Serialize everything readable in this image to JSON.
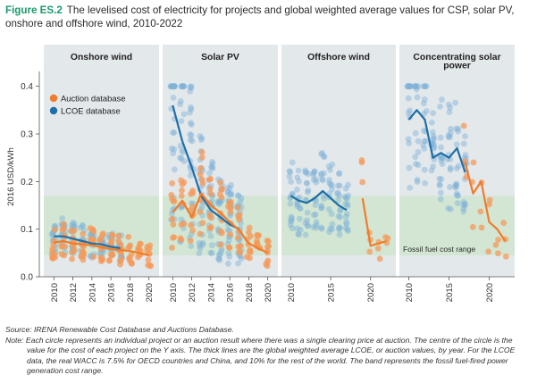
{
  "caption": {
    "figure_label": "Figure ES.2",
    "title": "The levelised cost of electricity for projects and global weighted average values for CSP, solar PV, onshore and offshore wind, 2010-2022"
  },
  "notes": {
    "source": "Source: IRENA Renewable Cost Database and Auctions Database.",
    "note": "Note: Each circle represents an individual project or an auction result where there was a single clearing price at auction. The centre of the circle is the value for the cost of each project on the Y axis. The thick lines are the global weighted average LCOE, or auction values, by year. For the LCOE data, the real WACC is 7.5% for OECD countries and China, and 10% for the rest of the world. The band represents the fossil fuel-fired power generation cost range."
  },
  "colors": {
    "panel_bg": "#e3e8eb",
    "band": "#cfe5cf",
    "lcoe_line": "#1f6fa8",
    "lcoe_dot": "#7fb2d6",
    "auction_line": "#f07c2a",
    "auction_dot": "#f59a5a",
    "fossil_label": "#2b2b2b"
  },
  "chart_data": {
    "type": "scatter",
    "ylabel": "2016 USD/kWh",
    "ylim": [
      0,
      0.42
    ],
    "y_ticks": [
      0.0,
      0.1,
      0.2,
      0.3,
      0.4
    ],
    "y_tick_labels": [
      "0.0",
      "0.1",
      "0.2",
      "0.3",
      "0.4"
    ],
    "fossil_band": [
      0.045,
      0.17
    ],
    "fossil_label": "Fossil fuel cost range",
    "legend": {
      "placement": "top-left",
      "auction": "Auction database",
      "lcoe": "LCOE database"
    },
    "panels": [
      {
        "name": "Onshore wind",
        "xlim": [
          2009.5,
          2020.5
        ],
        "x_ticks": [
          2010,
          2012,
          2014,
          2016,
          2018,
          2020
        ],
        "x_tick_labels": [
          "2010",
          "2012",
          "2014",
          "2016",
          "2018",
          "2020"
        ],
        "lcoe_line": {
          "x": [
            2010,
            2011,
            2012,
            2013,
            2014,
            2015,
            2016,
            2017
          ],
          "y": [
            0.085,
            0.085,
            0.08,
            0.075,
            0.07,
            0.068,
            0.063,
            0.06
          ]
        },
        "auction_line": {
          "x": [
            2010,
            2011,
            2012,
            2013,
            2014,
            2015,
            2016,
            2017,
            2018,
            2019,
            2020
          ],
          "y": [
            0.072,
            0.075,
            0.07,
            0.068,
            0.066,
            0.062,
            0.058,
            0.056,
            0.054,
            0.05,
            0.045
          ]
        }
      },
      {
        "name": "Solar PV",
        "xlim": [
          2009.5,
          2020.5
        ],
        "x_ticks": [
          2010,
          2012,
          2014,
          2016,
          2018,
          2020
        ],
        "x_tick_labels": [
          "2010",
          "2012",
          "2014",
          "2016",
          "2018",
          "2020"
        ],
        "lcoe_line": {
          "x": [
            2010,
            2011,
            2012,
            2013,
            2014,
            2015,
            2016,
            2017
          ],
          "y": [
            0.36,
            0.285,
            0.23,
            0.17,
            0.14,
            0.125,
            0.11,
            0.1
          ]
        },
        "auction_line": {
          "x": [
            2010,
            2011,
            2012,
            2013,
            2014,
            2015,
            2016,
            2017,
            2018,
            2019,
            2020
          ],
          "y": [
            0.135,
            0.16,
            0.125,
            0.175,
            0.15,
            0.135,
            0.115,
            0.098,
            0.07,
            0.06,
            0.05
          ]
        }
      },
      {
        "name": "Offshore wind",
        "xlim": [
          2009.5,
          2022.5
        ],
        "x_ticks": [
          2010,
          2015,
          2020
        ],
        "x_tick_labels": [
          "2010",
          "2015",
          "2020"
        ],
        "lcoe_line": {
          "x": [
            2010,
            2011,
            2012,
            2013,
            2014,
            2015,
            2016,
            2017
          ],
          "y": [
            0.17,
            0.16,
            0.155,
            0.165,
            0.18,
            0.165,
            0.15,
            0.14
          ]
        },
        "auction_line": {
          "x": [
            2019,
            2020,
            2021,
            2022
          ],
          "y": [
            0.165,
            0.065,
            0.07,
            0.075
          ]
        }
      },
      {
        "name": "Concentrating solar power",
        "xlim": [
          2009.5,
          2022.5
        ],
        "x_ticks": [
          2010,
          2015,
          2020
        ],
        "x_tick_labels": [
          "2010",
          "2015",
          "2020"
        ],
        "lcoe_line": {
          "x": [
            2010,
            2011,
            2012,
            2013,
            2014,
            2015,
            2016,
            2017
          ],
          "y": [
            0.33,
            0.35,
            0.33,
            0.25,
            0.26,
            0.25,
            0.27,
            0.22
          ]
        },
        "auction_line": {
          "x": [
            2017,
            2018,
            2019,
            2020,
            2021,
            2022
          ],
          "y": [
            0.24,
            0.175,
            0.2,
            0.115,
            0.1,
            0.075
          ]
        }
      }
    ]
  }
}
